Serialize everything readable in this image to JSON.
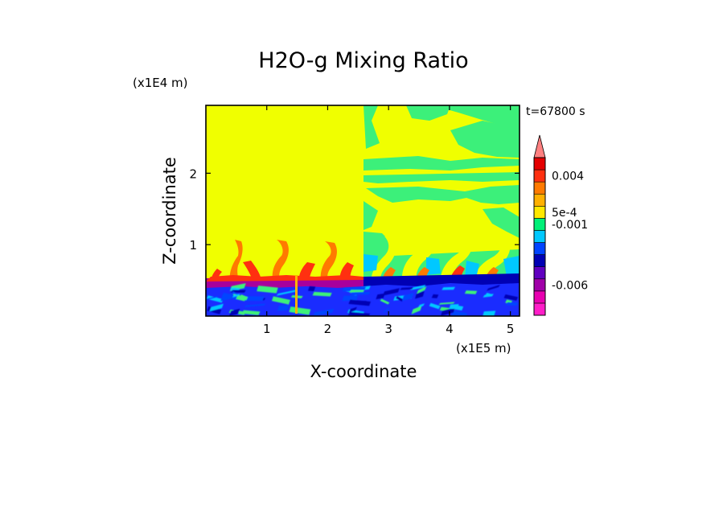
{
  "chart_data": {
    "type": "heatmap",
    "title": "H2O-g Mixing Ratio",
    "xlabel": "X-coordinate",
    "ylabel": "Z-coordinate",
    "x_multiplier": "(x1E5 m)",
    "y_multiplier": "(x1E4 m)",
    "timestamp": "t=67800 s",
    "xlim": [
      0,
      5.15
    ],
    "ylim": [
      0,
      2.95
    ],
    "x_ticks": [
      {
        "value": 1,
        "label": "1"
      },
      {
        "value": 2,
        "label": "2"
      },
      {
        "value": 3,
        "label": "3"
      },
      {
        "value": 4,
        "label": "4"
      },
      {
        "value": 5,
        "label": "5"
      }
    ],
    "y_ticks": [
      {
        "value": 1,
        "label": "1"
      },
      {
        "value": 2,
        "label": "2"
      }
    ],
    "colorbar": {
      "colors": [
        "#ff1ec8",
        "#e800b0",
        "#a000a8",
        "#6000c0",
        "#0000b4",
        "#0044ff",
        "#00c8ff",
        "#00f078",
        "#ffe800",
        "#ffb000",
        "#ff7a00",
        "#ff3010",
        "#e40000",
        "#ff8080"
      ],
      "labels": [
        {
          "value": "-0.006",
          "at_level": 2.5
        },
        {
          "value": "-0.001",
          "at_level": 7.5
        },
        {
          "value": "5e-4",
          "at_level": 8.5
        },
        {
          "value": "0.004",
          "at_level": 11.5
        }
      ]
    },
    "regions": [
      {
        "name": "upper-left",
        "x_range": [
          0,
          2.55
        ],
        "z_range": [
          0.5,
          2.95
        ],
        "dominant_color": "#f0ff00"
      },
      {
        "name": "upper-right",
        "x_range": [
          2.55,
          5.15
        ],
        "z_range": [
          0.5,
          2.95
        ],
        "dominant_color": "#f0ff00",
        "secondary_color": "#3cf07a"
      },
      {
        "name": "boundary-layer",
        "x_range": [
          0,
          5.15
        ],
        "z_range": [
          0,
          0.5
        ],
        "dominant_color": "#1a2cff"
      }
    ]
  }
}
